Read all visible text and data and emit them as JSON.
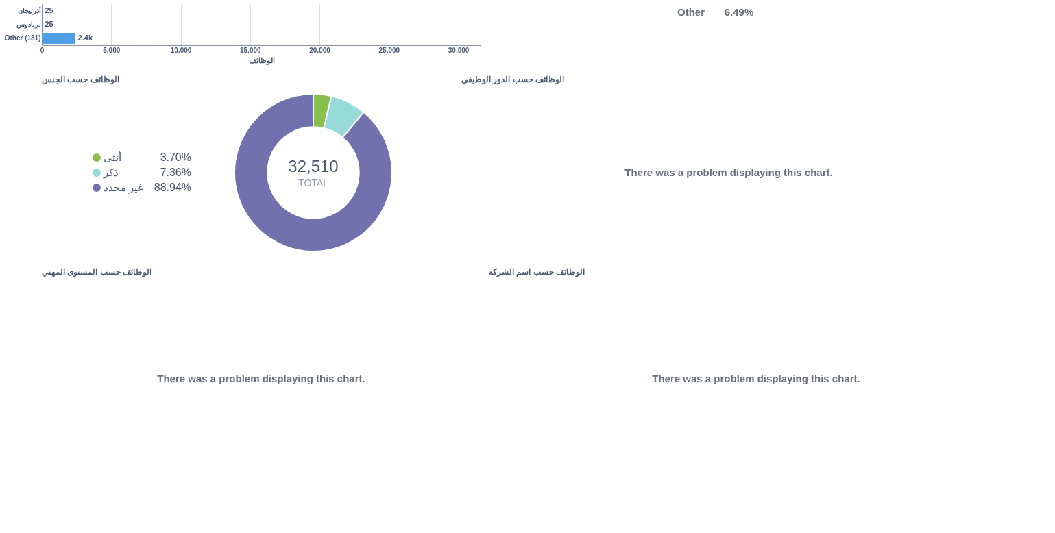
{
  "chart_data": [
    {
      "type": "bar",
      "orientation": "horizontal",
      "categories": [
        "أذربيجان",
        "بربادوس",
        "Other (181)"
      ],
      "values": [
        25,
        25,
        2400
      ],
      "value_labels": [
        "25",
        "25",
        "2.4k"
      ],
      "color": "#509ee3",
      "xlabel": "الوظائف",
      "xlim": [
        0,
        31600
      ],
      "xticks": [
        0,
        {
          "value": 5000,
          "label": "5,000"
        },
        {
          "value": 10000,
          "label": "10,000"
        },
        {
          "value": 15000,
          "label": "15,000"
        },
        {
          "value": 20000,
          "label": "20,000"
        },
        {
          "value": 25000,
          "label": "25,000"
        },
        {
          "value": 30000,
          "label": "30,000"
        }
      ],
      "grid": "x"
    },
    {
      "type": "other",
      "annotations": [
        "Other",
        "6.49%"
      ]
    },
    {
      "type": "donut",
      "title": "الوظائف حسب الجنس",
      "categories": [
        "أنثى",
        "ذكر",
        "غير محدد"
      ],
      "values": [
        3.7,
        7.36,
        88.94
      ],
      "value_labels": [
        "3.70%",
        "7.36%",
        "88.94%"
      ],
      "colors": [
        "#88bf4d",
        "#98d9d9",
        "#7172ad"
      ],
      "legend": "left",
      "annotations": [
        "32,510",
        "TOTAL"
      ]
    },
    {
      "type": "other",
      "title": "الوظائف حسب الدور الوظيفي",
      "annotations": [
        "There was a problem displaying this chart."
      ]
    },
    {
      "type": "other",
      "title": "الوظائف حسب المستوى المهني",
      "annotations": [
        "There was a problem displaying this chart."
      ]
    },
    {
      "type": "other",
      "title": "الوظائف حسب اسم الشركة",
      "annotations": [
        "There was a problem displaying this chart."
      ]
    }
  ]
}
